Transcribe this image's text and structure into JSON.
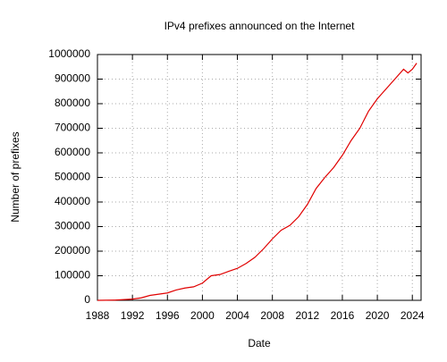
{
  "chart_data": {
    "type": "line",
    "title": "IPv4 prefixes announced on the Internet",
    "x_label": "Date",
    "y_label": "Number of prefixes",
    "x": [
      1988,
      1990,
      1992,
      1993,
      1994,
      1995,
      1996,
      1997,
      1998,
      1999,
      2000,
      2001,
      2002,
      2003,
      2004,
      2005,
      2006,
      2007,
      2008,
      2009,
      2010,
      2011,
      2012,
      2013,
      2014,
      2015,
      2016,
      2017,
      2018,
      2019,
      2020,
      2021,
      2022,
      2023,
      2023.5,
      2024,
      2024.5
    ],
    "series": [
      {
        "name": "IPv4 prefixes",
        "color": "#e00000",
        "values": [
          0,
          1000,
          5000,
          10000,
          20000,
          25000,
          30000,
          42000,
          50000,
          55000,
          70000,
          100000,
          105000,
          118000,
          130000,
          150000,
          175000,
          210000,
          250000,
          285000,
          305000,
          340000,
          390000,
          455000,
          500000,
          540000,
          590000,
          650000,
          700000,
          770000,
          820000,
          860000,
          900000,
          940000,
          925000,
          940000,
          965000
        ]
      }
    ],
    "xlim": [
      1988,
      2025
    ],
    "xticks": [
      1988,
      1992,
      1996,
      2000,
      2004,
      2008,
      2012,
      2016,
      2020,
      2024
    ],
    "ylim": [
      0,
      1000000
    ],
    "yticks": [
      0,
      100000,
      200000,
      300000,
      400000,
      500000,
      600000,
      700000,
      800000,
      900000,
      1000000
    ],
    "grid": true
  }
}
